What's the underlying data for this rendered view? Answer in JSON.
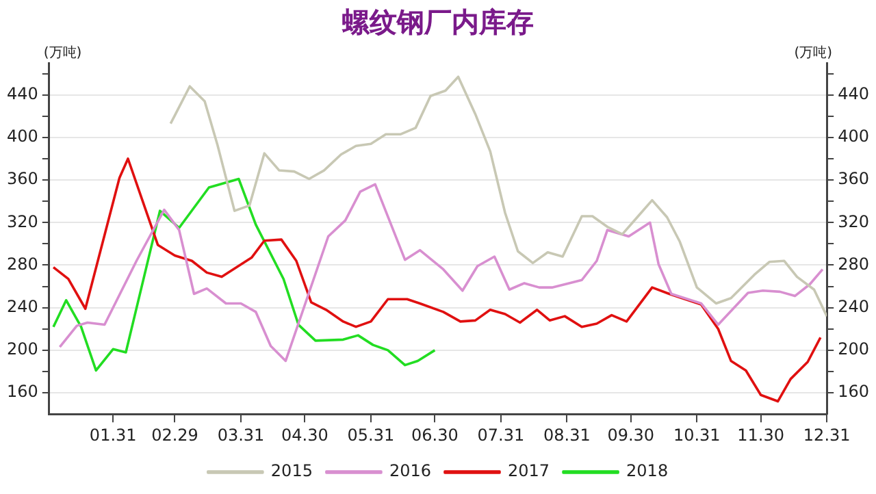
{
  "chart_data": {
    "type": "line",
    "title": "螺纹钢厂内库存",
    "ylabel": "(万吨)",
    "y2label": "(万吨)",
    "xlim": [
      "--01-01",
      "--12-31"
    ],
    "xticks": [
      {
        "value": "--01-31",
        "label": "01.31"
      },
      {
        "value": "--02-29",
        "label": "02.29"
      },
      {
        "value": "--03-31",
        "label": "03.31"
      },
      {
        "value": "--04-30",
        "label": "04.30"
      },
      {
        "value": "--05-31",
        "label": "05.31"
      },
      {
        "value": "--06-30",
        "label": "06.30"
      },
      {
        "value": "--07-31",
        "label": "07.31"
      },
      {
        "value": "--08-31",
        "label": "08.31"
      },
      {
        "value": "--09-30",
        "label": "09.30"
      },
      {
        "value": "--10-31",
        "label": "10.31"
      },
      {
        "value": "--11-30",
        "label": "11.30"
      },
      {
        "value": "--12-31",
        "label": "12.31"
      }
    ],
    "ylim": [
      140,
      470
    ],
    "yticks": [
      160,
      {
        "value": 180,
        "label": null
      },
      200,
      {
        "value": 220,
        "label": null
      },
      240,
      {
        "value": 260,
        "label": null
      },
      280,
      {
        "value": 300,
        "label": null
      },
      320,
      {
        "value": 340,
        "label": null
      },
      360,
      {
        "value": 380,
        "label": null
      },
      400,
      {
        "value": 420,
        "label": null
      },
      440,
      {
        "value": 460,
        "label": null
      }
    ],
    "y2lim": [
      140,
      470
    ],
    "y2ticks": [
      160,
      {
        "value": 180,
        "label": null
      },
      200,
      {
        "value": 220,
        "label": null
      },
      240,
      {
        "value": 260,
        "label": null
      },
      280,
      {
        "value": 300,
        "label": null
      },
      320,
      {
        "value": 340,
        "label": null
      },
      360,
      {
        "value": 380,
        "label": null
      },
      400,
      {
        "value": 420,
        "label": null
      },
      440,
      {
        "value": 460,
        "label": null
      }
    ],
    "grid": "y",
    "legend": "bottom",
    "marker": "none",
    "line_style": "solid",
    "series": [
      {
        "name": "2015",
        "color": "#c8c8b4",
        "x": [
          "--02-27",
          "--03-07",
          "--03-14",
          "--03-20",
          "--03-28",
          "--04-04",
          "--04-11",
          "--04-18",
          "--04-25",
          "--05-02",
          "--05-09",
          "--05-17",
          "--05-24",
          "--05-31",
          "--06-07",
          "--06-14",
          "--06-21",
          "--06-28",
          "--07-05",
          "--07-11",
          "--07-19",
          "--07-26",
          "--08-02",
          "--08-08",
          "--08-15",
          "--08-22",
          "--08-29",
          "--09-07",
          "--09-12",
          "--09-19",
          "--09-26",
          "--10-03",
          "--10-10",
          "--10-17",
          "--10-23",
          "--10-31",
          "--11-09",
          "--11-16",
          "--11-27",
          "--12-04",
          "--12-11",
          "--12-17",
          "--12-25",
          "--12-31"
        ],
        "values": [
          413,
          448,
          434,
          393,
          331,
          336,
          385,
          369,
          368,
          361,
          369,
          384,
          392,
          394,
          403,
          403,
          409,
          439,
          444,
          457,
          422,
          387,
          329,
          293,
          282,
          292,
          288,
          326,
          326,
          316,
          309,
          325,
          341,
          325,
          302,
          259,
          244,
          249,
          271,
          283,
          284,
          269,
          257,
          232
        ]
      },
      {
        "name": "2016",
        "color": "#d88fd0",
        "x": [
          "--01-06",
          "--01-14",
          "--01-19",
          "--01-27",
          "--02-11",
          "--02-24",
          "--03-02",
          "--03-09",
          "--03-15",
          "--03-24",
          "--03-31",
          "--04-07",
          "--04-14",
          "--04-21",
          "--05-11",
          "--05-19",
          "--05-26",
          "--06-02",
          "--06-16",
          "--06-23",
          "--07-04",
          "--07-13",
          "--07-20",
          "--07-28",
          "--08-04",
          "--08-11",
          "--08-18",
          "--08-24",
          "--09-01",
          "--09-07",
          "--09-14",
          "--09-19",
          "--09-29",
          "--10-09",
          "--10-13",
          "--10-19",
          "--11-02",
          "--11-10",
          "--11-24",
          "--12-01",
          "--12-09",
          "--12-16",
          "--12-23",
          "--12-29"
        ],
        "values": [
          203,
          223,
          226,
          224,
          284,
          332,
          313,
          253,
          258,
          244,
          244,
          236,
          204,
          190,
          307,
          322,
          349,
          356,
          285,
          294,
          276,
          256,
          279,
          288,
          257,
          263,
          259,
          259,
          263,
          266,
          284,
          313,
          307,
          320,
          281,
          253,
          244,
          224,
          254,
          256,
          255,
          251,
          262,
          276
        ]
      },
      {
        "name": "2017",
        "color": "#e01010",
        "x": [
          "--01-03",
          "--01-10",
          "--01-18",
          "--02-03",
          "--02-07",
          "--02-21",
          "--02-29",
          "--03-08",
          "--03-15",
          "--03-22",
          "--04-05",
          "--04-11",
          "--04-19",
          "--04-26",
          "--05-03",
          "--05-10",
          "--05-18",
          "--05-24",
          "--05-31",
          "--06-08",
          "--06-17",
          "--06-23",
          "--07-04",
          "--07-12",
          "--07-19",
          "--07-26",
          "--08-02",
          "--08-09",
          "--08-17",
          "--08-23",
          "--08-30",
          "--09-07",
          "--09-14",
          "--09-21",
          "--09-28",
          "--10-10",
          "--10-18",
          "--11-02",
          "--11-10",
          "--11-16",
          "--11-23",
          "--11-30",
          "--12-08",
          "--12-14",
          "--12-22",
          "--12-28"
        ],
        "values": [
          278,
          267,
          239,
          362,
          380,
          299,
          289,
          284,
          273,
          269,
          287,
          303,
          304,
          284,
          245,
          238,
          227,
          222,
          227,
          248,
          248,
          244,
          236,
          227,
          228,
          238,
          234,
          226,
          238,
          228,
          232,
          222,
          225,
          233,
          227,
          259,
          253,
          243,
          220,
          190,
          181,
          158,
          152,
          173,
          189,
          212
        ]
      },
      {
        "name": "2018",
        "color": "#22dd22",
        "x": [
          "--01-03",
          "--01-09",
          "--01-16",
          "--01-23",
          "--01-31",
          "--02-06",
          "--02-22",
          "--03-02",
          "--03-16",
          "--03-30",
          "--04-07",
          "--04-20",
          "--04-27",
          "--05-05",
          "--05-18",
          "--05-25",
          "--06-01",
          "--06-08",
          "--06-16",
          "--06-22",
          "--06-30"
        ],
        "values": [
          222,
          247,
          222,
          181,
          201,
          198,
          331,
          315,
          353,
          361,
          318,
          267,
          224,
          209,
          210,
          214,
          205,
          200,
          186,
          190,
          200
        ]
      }
    ]
  }
}
